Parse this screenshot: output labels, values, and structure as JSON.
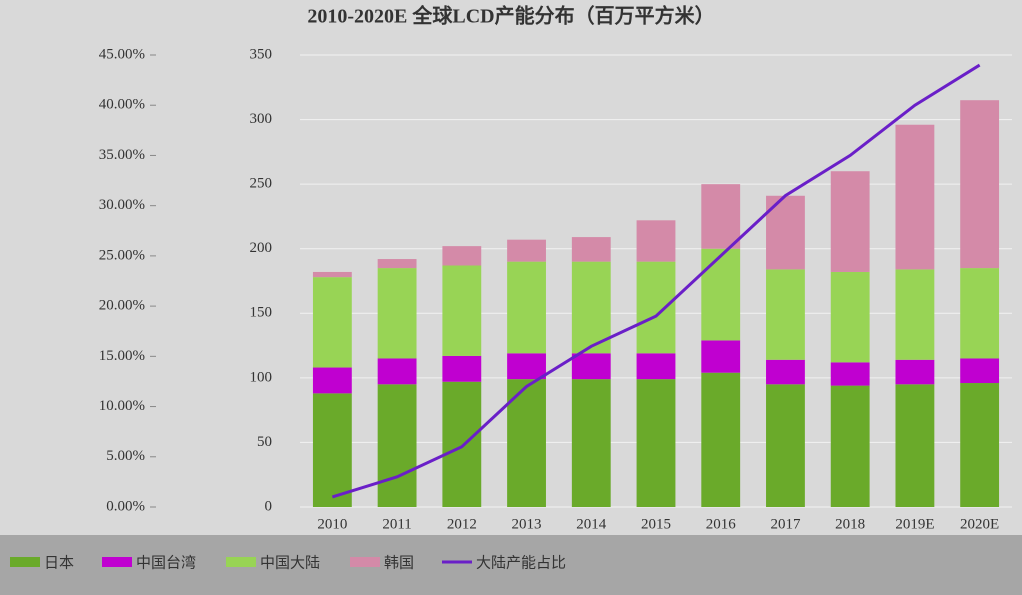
{
  "chart_data": {
    "type": "bar",
    "title": "2010-2020E 全球LCD产能分布（百万平方米）",
    "categories": [
      "2010",
      "2011",
      "2012",
      "2013",
      "2014",
      "2015",
      "2016",
      "2017",
      "2018",
      "2019E",
      "2020E"
    ],
    "series": [
      {
        "name": "日本",
        "color": "#6aaa2a",
        "values": [
          88,
          95,
          97,
          99,
          99,
          99,
          104,
          95,
          94,
          95,
          96
        ]
      },
      {
        "name": "中国台湾",
        "color": "#c000d0",
        "values": [
          20,
          20,
          20,
          20,
          20,
          20,
          25,
          19,
          18,
          19,
          19
        ]
      },
      {
        "name": "中国大陆",
        "color": "#98d455",
        "values": [
          70,
          70,
          70,
          71,
          71,
          71,
          71,
          70,
          70,
          70,
          70
        ]
      },
      {
        "name": "韩国",
        "color": "#d48aa8",
        "values": [
          4,
          7,
          15,
          17,
          19,
          32,
          50,
          57,
          78,
          112,
          130
        ]
      },
      {
        "name": "大陆产能占比",
        "color": "#6a1fc8",
        "axis": "y2",
        "type": "line",
        "values": [
          1,
          3,
          6,
          12,
          16,
          19,
          25,
          31,
          35,
          40,
          44
        ]
      }
    ],
    "ylim": [
      0,
      350
    ],
    "yticks": [
      0,
      50,
      100,
      150,
      200,
      250,
      300,
      350
    ],
    "y2lim": [
      0,
      45
    ],
    "y2ticks": [
      {
        "value": 0,
        "label": "0.00%"
      },
      {
        "value": 5,
        "label": "5.00%"
      },
      {
        "value": 10,
        "label": "10.00%"
      },
      {
        "value": 15,
        "label": "15.00%"
      },
      {
        "value": 20,
        "label": "20.00%"
      },
      {
        "value": 25,
        "label": "25.00%"
      },
      {
        "value": 30,
        "label": "30.00%"
      },
      {
        "value": 35,
        "label": "35.00%"
      },
      {
        "value": 40,
        "label": "40.00%"
      },
      {
        "value": 45,
        "label": "45.00%"
      }
    ],
    "legend": "bottom"
  }
}
